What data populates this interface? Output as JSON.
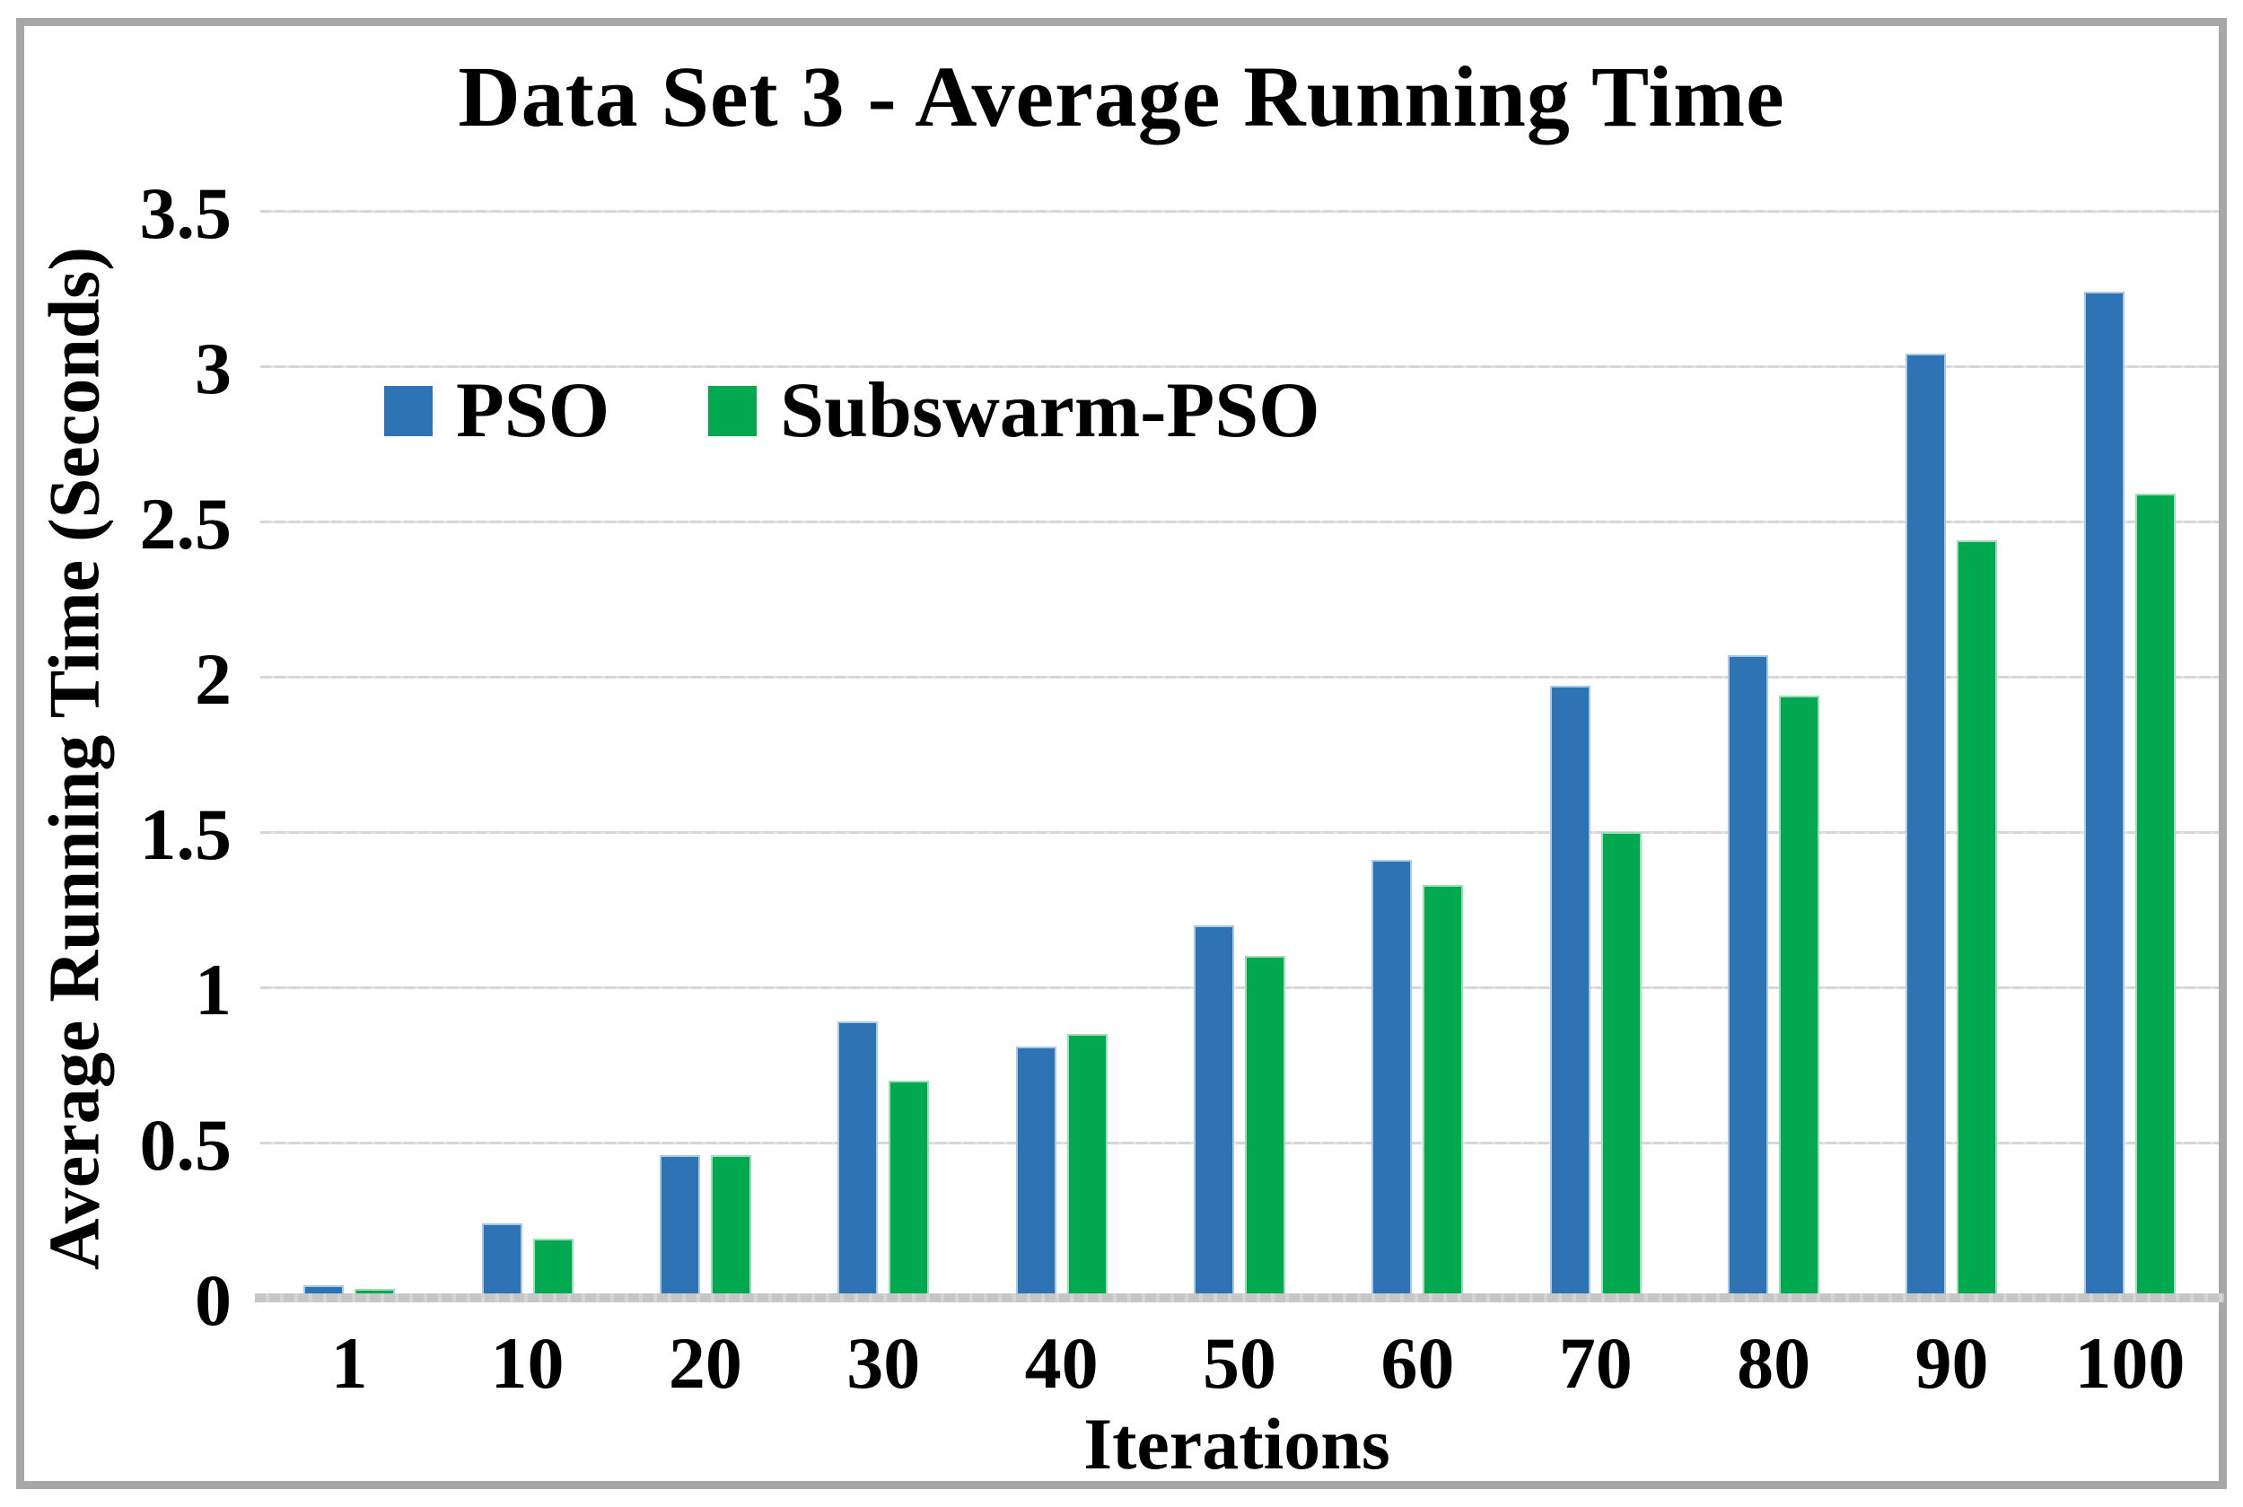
{
  "chart_data": {
    "type": "bar",
    "title": "Data Set 3 - Average Running Time",
    "xlabel": "Iterations",
    "ylabel": "Average Running Time (Seconds)",
    "categories": [
      "1",
      "10",
      "20",
      "30",
      "40",
      "50",
      "60",
      "70",
      "80",
      "90",
      "100"
    ],
    "series": [
      {
        "name": "PSO",
        "color": "#2E74B5",
        "border_color": "#A9C7E7",
        "values": [
          0.04,
          0.24,
          0.46,
          0.89,
          0.81,
          1.2,
          1.41,
          1.97,
          2.07,
          3.04,
          3.24
        ]
      },
      {
        "name": "Subswarm-PSO",
        "color": "#00A950",
        "border_color": "#9FDDB8",
        "values": [
          0.03,
          0.19,
          0.46,
          0.7,
          0.85,
          1.1,
          1.33,
          1.5,
          1.94,
          2.44,
          2.59
        ]
      }
    ],
    "ylim": [
      0,
      3.5
    ],
    "ytick_step": 0.5,
    "yticks": [
      "0",
      "0.5",
      "1",
      "1.5",
      "2",
      "2.5",
      "3",
      "3.5"
    ],
    "grid": true,
    "gridline_color": "#D9D9D9",
    "axis_line_color": "#C6C6C6",
    "legend_position": "inside-top-left"
  }
}
